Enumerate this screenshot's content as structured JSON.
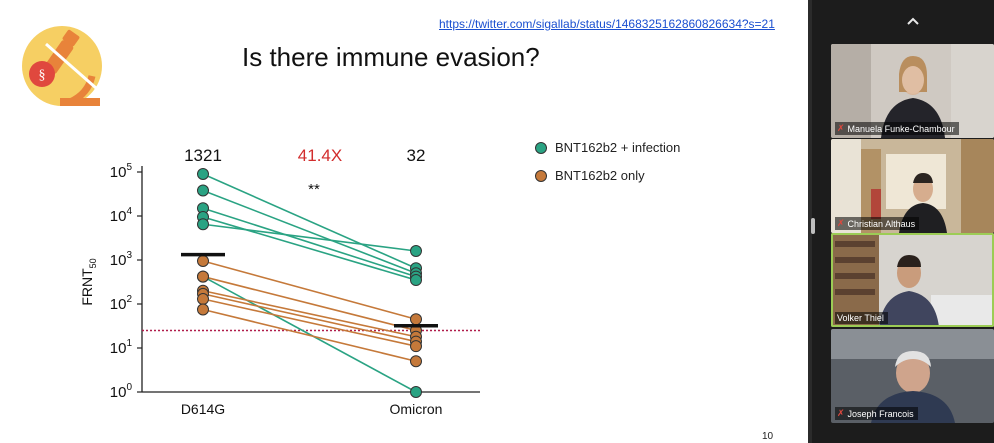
{
  "slide": {
    "link": "https://twitter.com/sigallab/status/1468325162860826634?s=21",
    "title": "Is there immune evasion?",
    "page_number": "10"
  },
  "chart_data": {
    "type": "scatter",
    "ylabel": "FRNT",
    "ylabel_sub": "50",
    "y_scale": "log",
    "ylim": [
      1,
      100000
    ],
    "y_ticks": [
      {
        "base": "10",
        "exp": "0"
      },
      {
        "base": "10",
        "exp": "1"
      },
      {
        "base": "10",
        "exp": "2"
      },
      {
        "base": "10",
        "exp": "3"
      },
      {
        "base": "10",
        "exp": "4"
      },
      {
        "base": "10",
        "exp": "5"
      }
    ],
    "categories": [
      "D614G",
      "Omicron"
    ],
    "annotations": {
      "d614g_gmt": "1321",
      "fold_change": "41.4X",
      "significance": "**",
      "omicron_gmt": "32"
    },
    "geometric_means": [
      1321,
      32
    ],
    "threshold": 25,
    "series": [
      {
        "name": "BNT162b2 + infection",
        "color": "#2aa383",
        "pairs": [
          [
            90000,
            650
          ],
          [
            38000,
            500
          ],
          [
            15000,
            420
          ],
          [
            9500,
            350
          ],
          [
            6500,
            1600
          ],
          [
            420,
            1
          ]
        ]
      },
      {
        "name": "BNT162b2 only",
        "color": "#c5793a",
        "pairs": [
          [
            950,
            45
          ],
          [
            420,
            25
          ],
          [
            200,
            18
          ],
          [
            170,
            14
          ],
          [
            130,
            11
          ],
          [
            75,
            5
          ]
        ]
      }
    ]
  },
  "sidebar": {
    "participants": [
      {
        "name": "Manuela Funke-Chambour",
        "muted": true
      },
      {
        "name": "Christian Althaus",
        "muted": true
      },
      {
        "name": "Volker Thiel",
        "muted": false
      },
      {
        "name": "Joseph Francois",
        "muted": true
      }
    ]
  }
}
